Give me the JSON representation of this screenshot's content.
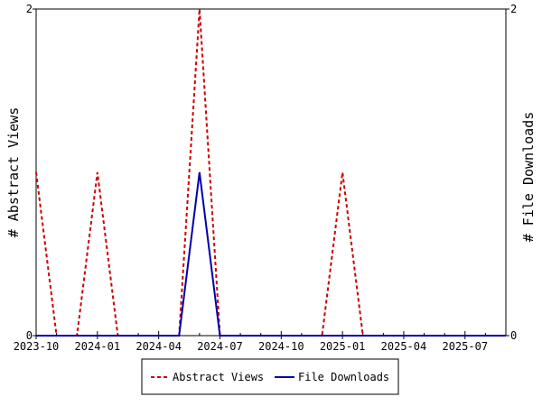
{
  "chart_data": {
    "type": "line",
    "x": [
      "2023-10",
      "2023-11",
      "2023-12",
      "2024-01",
      "2024-02",
      "2024-03",
      "2024-04",
      "2024-05",
      "2024-06",
      "2024-07",
      "2024-08",
      "2024-09",
      "2024-10",
      "2024-11",
      "2024-12",
      "2025-01",
      "2025-02",
      "2025-03",
      "2025-04",
      "2025-05",
      "2025-06",
      "2025-07",
      "2025-08",
      "2025-09"
    ],
    "x_tick_labels": [
      "2023-10",
      "2024-01",
      "2024-04",
      "2024-07",
      "2024-10",
      "2025-01",
      "2025-04",
      "2025-07"
    ],
    "series": [
      {
        "name": "Abstract Views",
        "axis": "left",
        "color": "#cc0000",
        "dash": true,
        "values": [
          1,
          0,
          0,
          1,
          0,
          0,
          0,
          0,
          2,
          0,
          0,
          0,
          0,
          0,
          0,
          1,
          0,
          0,
          0,
          0,
          0,
          0,
          0,
          0
        ]
      },
      {
        "name": "File Downloads",
        "axis": "right",
        "color": "#0000aa",
        "dash": false,
        "values": [
          0,
          0,
          0,
          0,
          0,
          0,
          0,
          0,
          1,
          0,
          0,
          0,
          0,
          0,
          0,
          0,
          0,
          0,
          0,
          0,
          0,
          0,
          0,
          0
        ]
      }
    ],
    "ylabel_left": "# Abstract Views",
    "ylabel_right": "# File Downloads",
    "ylim_left": [
      0,
      2
    ],
    "ylim_right": [
      0,
      2
    ],
    "y_ticks_left": [
      "0",
      "2"
    ],
    "y_ticks_right": [
      "0",
      "2"
    ],
    "legend_placement": "bottom-center",
    "grid": false
  }
}
